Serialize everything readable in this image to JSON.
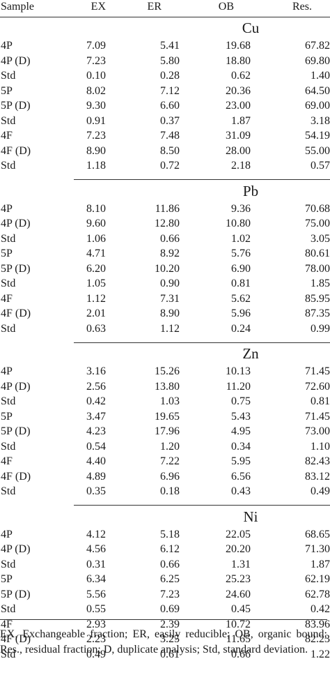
{
  "headers": [
    "Sample",
    "EX",
    "ER",
    "OB",
    "Res."
  ],
  "sections": [
    {
      "title": "Cu",
      "rows": [
        [
          "4P",
          "7.09",
          "5.41",
          "19.68",
          "67.82"
        ],
        [
          "4P (D)",
          "7.23",
          "5.80",
          "18.80",
          "69.80"
        ],
        [
          "Std",
          "0.10",
          "0.28",
          "0.62",
          "1.40"
        ],
        [
          "5P",
          "8.02",
          "7.12",
          "20.36",
          "64.50"
        ],
        [
          "5P (D)",
          "9.30",
          "6.60",
          "23.00",
          "69.00"
        ],
        [
          "Std",
          "0.91",
          "0.37",
          "1.87",
          "3.18"
        ],
        [
          "4F",
          "7.23",
          "7.48",
          "31.09",
          "54.19"
        ],
        [
          "4F (D)",
          "8.90",
          "8.50",
          "28.00",
          "55.00"
        ],
        [
          "Std",
          "1.18",
          "0.72",
          "2.18",
          "0.57"
        ]
      ]
    },
    {
      "title": "Pb",
      "rows": [
        [
          "4P",
          "8.10",
          "11.86",
          "9.36",
          "70.68"
        ],
        [
          "4P (D)",
          "9.60",
          "12.80",
          "10.80",
          "75.00"
        ],
        [
          "Std",
          "1.06",
          "0.66",
          "1.02",
          "3.05"
        ],
        [
          "5P",
          "4.71",
          "8.92",
          "5.76",
          "80.61"
        ],
        [
          "5P (D)",
          "6.20",
          "10.20",
          "6.90",
          "78.00"
        ],
        [
          "Std",
          "1.05",
          "0.90",
          "0.81",
          "1.85"
        ],
        [
          "4F",
          "1.12",
          "7.31",
          "5.62",
          "85.95"
        ],
        [
          "4F (D)",
          "2.01",
          "8.90",
          "5.96",
          "87.35"
        ],
        [
          "Std",
          "0.63",
          "1.12",
          "0.24",
          "0.99"
        ]
      ]
    },
    {
      "title": "Zn",
      "rows": [
        [
          "4P",
          "3.16",
          "15.26",
          "10.13",
          "71.45"
        ],
        [
          "4P (D)",
          "2.56",
          "13.80",
          "11.20",
          "72.60"
        ],
        [
          "Std",
          "0.42",
          "1.03",
          "0.75",
          "0.81"
        ],
        [
          "5P",
          "3.47",
          "19.65",
          "5.43",
          "71.45"
        ],
        [
          "5P (D)",
          "4.23",
          "17.96",
          "4.95",
          "73.00"
        ],
        [
          "Std",
          "0.54",
          "1.20",
          "0.34",
          "1.10"
        ],
        [
          "4F",
          "4.40",
          "7.22",
          "5.95",
          "82.43"
        ],
        [
          "4F (D)",
          "4.89",
          "6.96",
          "6.56",
          "83.12"
        ],
        [
          "Std",
          "0.35",
          "0.18",
          "0.43",
          "0.49"
        ]
      ]
    },
    {
      "title": "Ni",
      "rows": [
        [
          "4P",
          "4.12",
          "5.18",
          "22.05",
          "68.65"
        ],
        [
          "4P (D)",
          "4.56",
          "6.12",
          "20.20",
          "71.30"
        ],
        [
          "Std",
          "0.31",
          "0.66",
          "1.31",
          "1.87"
        ],
        [
          "5P",
          "6.34",
          "6.25",
          "25.23",
          "62.19"
        ],
        [
          "5P (D)",
          "5.56",
          "7.23",
          "24.60",
          "62.78"
        ],
        [
          "Std",
          "0.55",
          "0.69",
          "0.45",
          "0.42"
        ],
        [
          "4F",
          "2.93",
          "2.39",
          "10.72",
          "83.96"
        ],
        [
          "4F (D)",
          "2.23",
          "3.25",
          "11.65",
          "82.23"
        ],
        [
          "Std",
          "0.49",
          "0.61",
          "0.66",
          "1.22"
        ]
      ]
    }
  ],
  "footnote": "EX, Exchangeable fraction; ER, easily reducible; OB, organic bound; Res., residual fraction; D, duplicate analysis; Std, standard deviation."
}
